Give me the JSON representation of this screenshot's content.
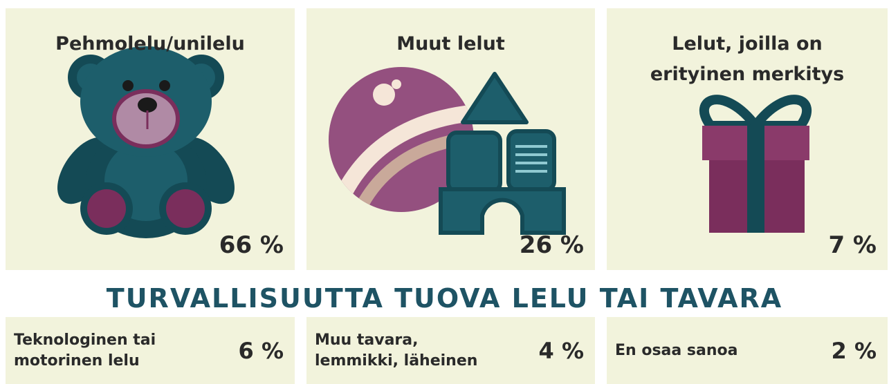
{
  "panels": [
    {
      "title": "Pehmolelu/unilelu",
      "value": "66 %"
    },
    {
      "title": "Muut lelut",
      "value": "26 %"
    },
    {
      "title": "Lelut, joilla on\nerityinen merkitys",
      "value": "7 %"
    }
  ],
  "heading": "TURVALLISUUTTA TUOVA LELU TAI TAVARA",
  "items": [
    {
      "label": "Teknologinen tai\nmotorinen lelu",
      "value": "6 %"
    },
    {
      "label": "Muu tavara,\nlemmikki, läheinen",
      "value": "4 %"
    },
    {
      "label": "En osaa sanoa",
      "value": "2 %"
    }
  ]
}
